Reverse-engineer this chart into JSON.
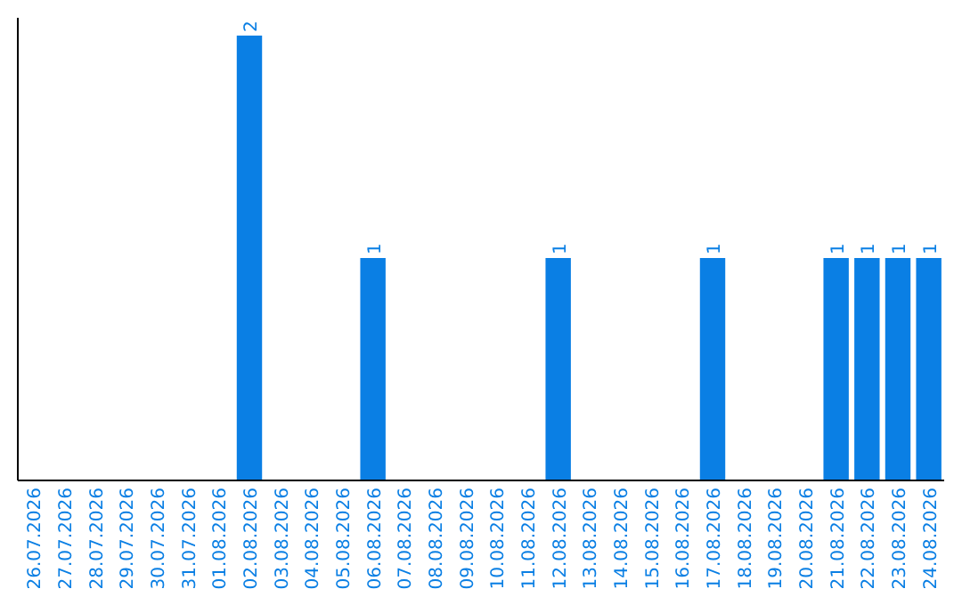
{
  "chart_data": {
    "type": "bar",
    "categories": [
      "26.07.2026",
      "27.07.2026",
      "28.07.2026",
      "29.07.2026",
      "30.07.2026",
      "31.07.2026",
      "01.08.2026",
      "02.08.2026",
      "03.08.2026",
      "04.08.2026",
      "05.08.2026",
      "06.08.2026",
      "07.08.2026",
      "08.08.2026",
      "09.08.2026",
      "10.08.2026",
      "11.08.2026",
      "12.08.2026",
      "13.08.2026",
      "14.08.2026",
      "15.08.2026",
      "16.08.2026",
      "17.08.2026",
      "18.08.2026",
      "19.08.2026",
      "20.08.2026",
      "21.08.2026",
      "22.08.2026",
      "23.08.2026",
      "24.08.2026"
    ],
    "values": [
      0,
      0,
      0,
      0,
      0,
      0,
      0,
      2,
      0,
      0,
      0,
      1,
      0,
      0,
      0,
      0,
      0,
      1,
      0,
      0,
      0,
      0,
      1,
      0,
      0,
      0,
      1,
      1,
      1,
      1
    ],
    "value_labels": [
      null,
      null,
      null,
      null,
      null,
      null,
      null,
      "2",
      null,
      null,
      null,
      "1",
      null,
      null,
      null,
      null,
      null,
      "1",
      null,
      null,
      null,
      null,
      "1",
      null,
      null,
      null,
      "1",
      "1",
      "1",
      "1"
    ],
    "color": "#0a7fe4",
    "tick_labels": "x"
  }
}
